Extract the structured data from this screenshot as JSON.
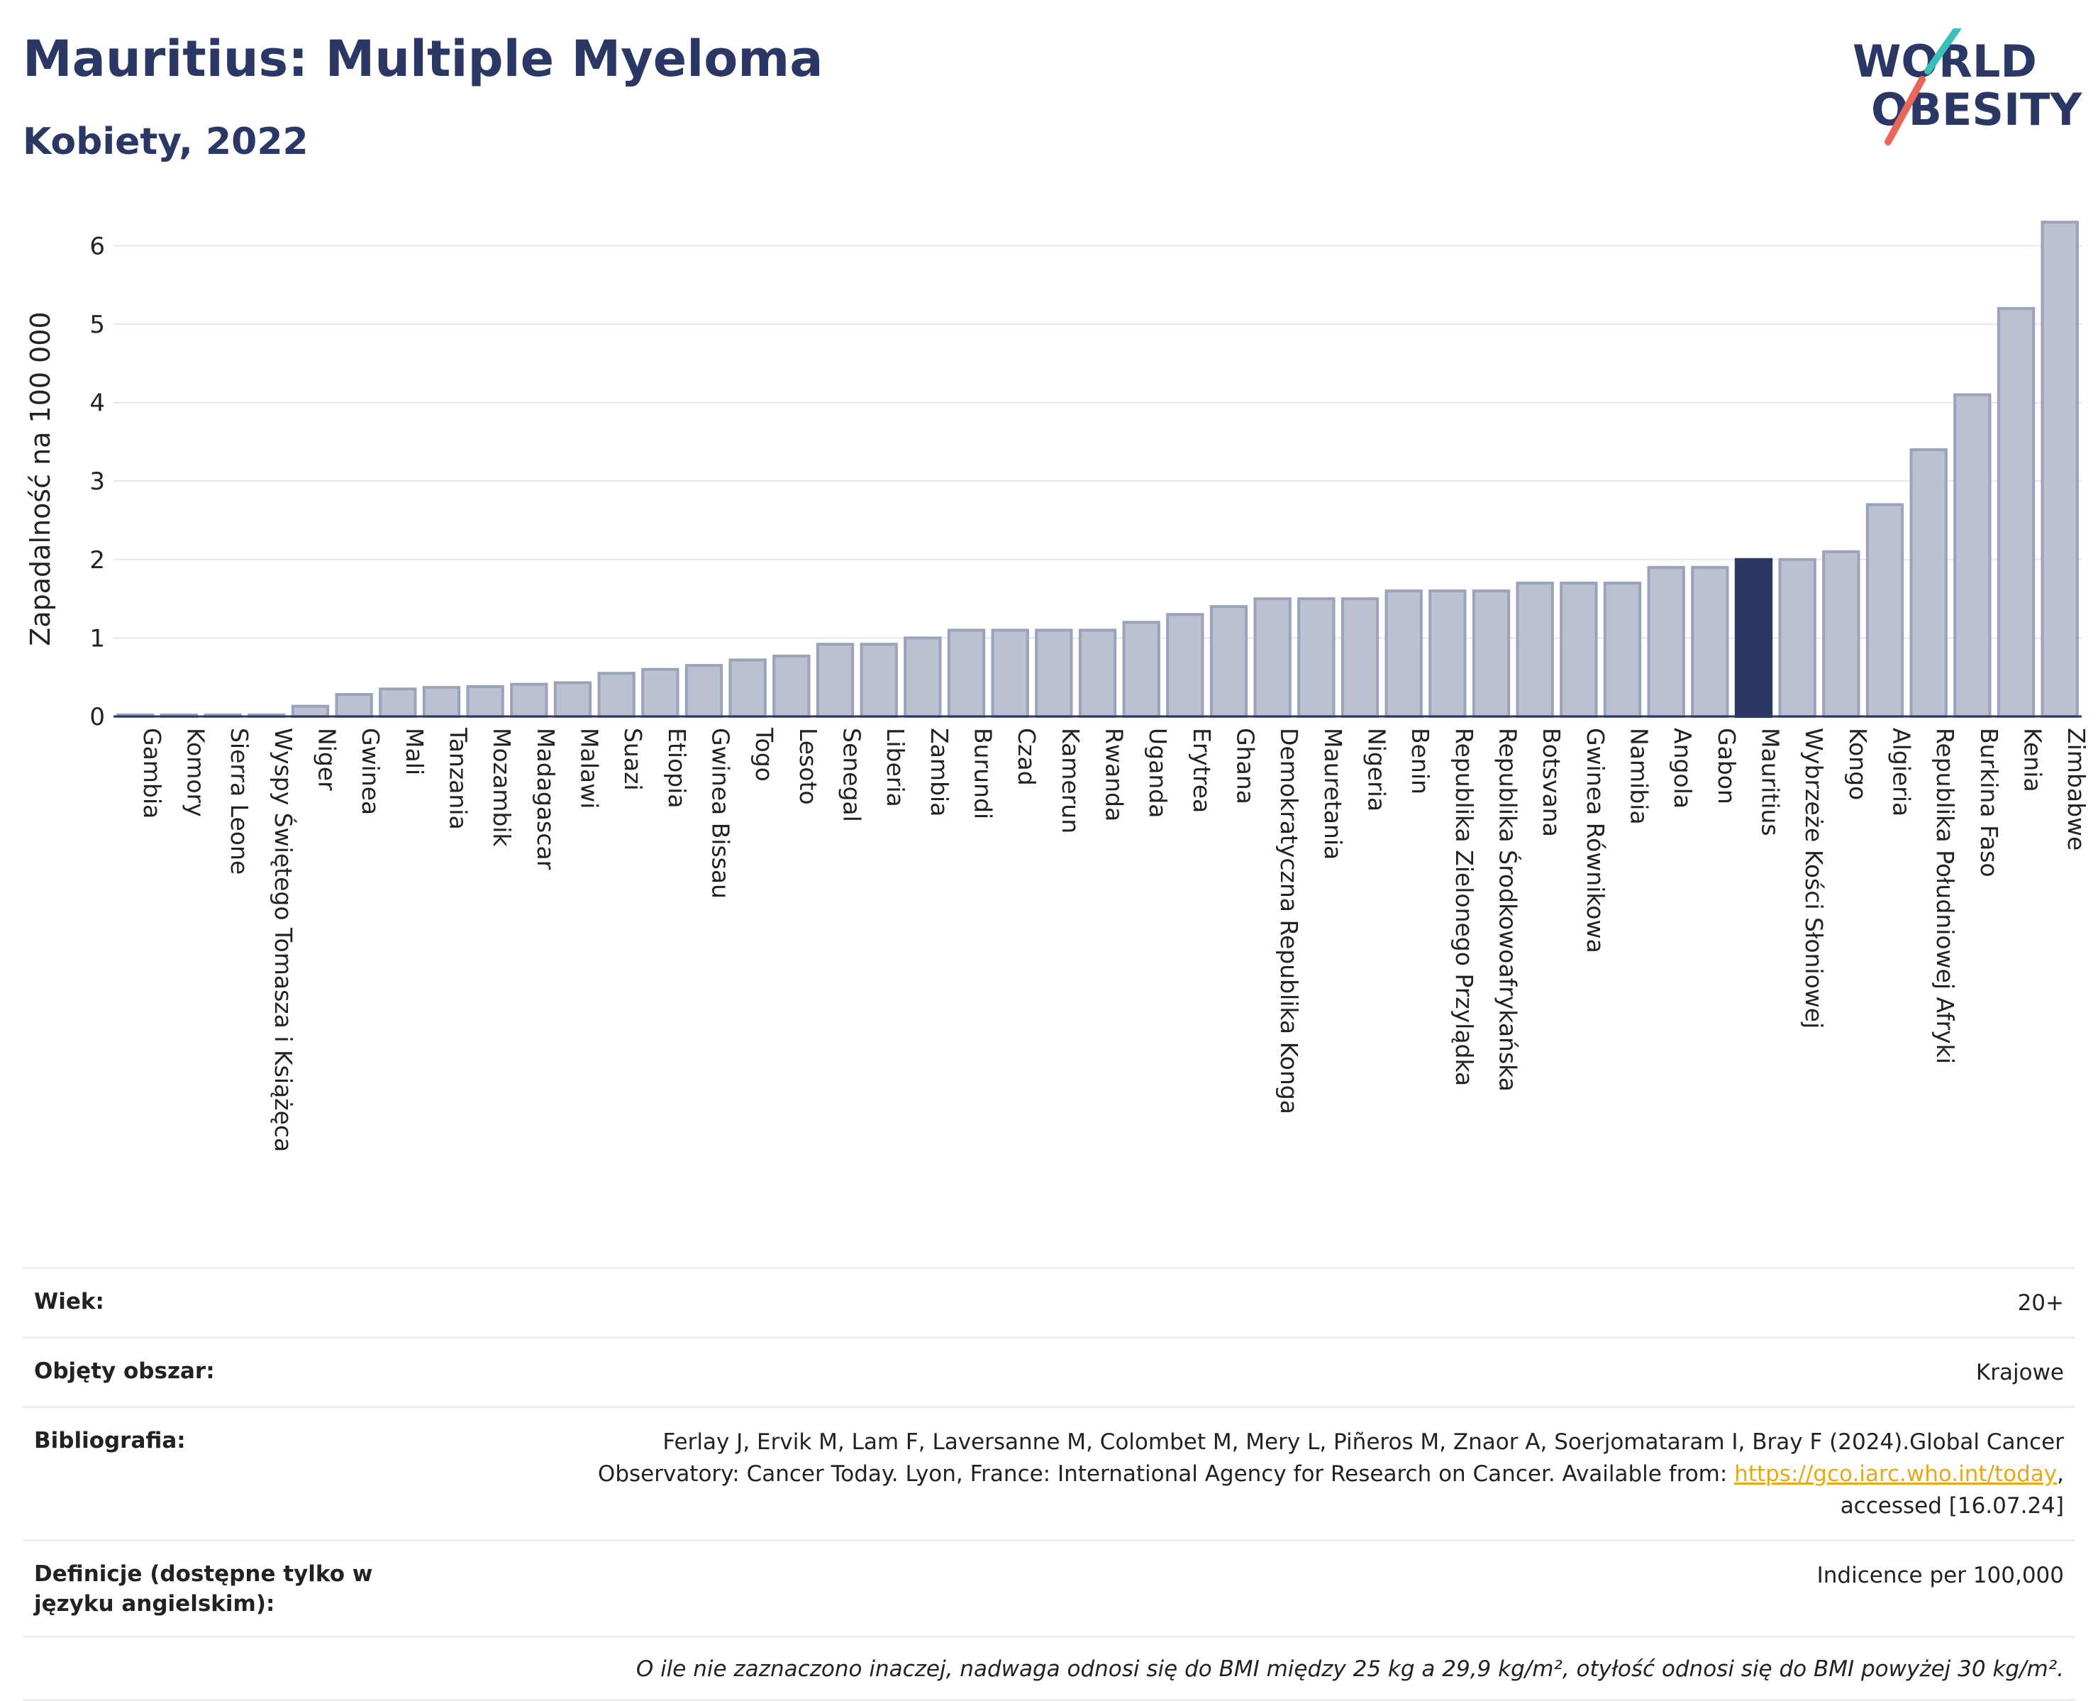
{
  "header": {
    "title": "Mauritius: Multiple Myeloma",
    "subtitle": "Kobiety, 2022"
  },
  "logo": {
    "line1": "WORLD",
    "line2": "OBESITY"
  },
  "colors": {
    "bar": "#bcc1d2",
    "bar_stroke": "#9aa2bc",
    "highlight": "#2b3866",
    "title": "#2b3866"
  },
  "chart_data": {
    "type": "bar",
    "ylabel": "Zapadalność na 100 000",
    "ylim": [
      0,
      6.6
    ],
    "yticks": [
      0,
      1,
      2,
      3,
      4,
      5,
      6
    ],
    "grid": true,
    "highlight": "Mauritius",
    "categories": [
      "Gambia",
      "Komory",
      "Sierra Leone",
      "Wyspy Świętego Tomasza i Książęca",
      "Niger",
      "Gwinea",
      "Mali",
      "Tanzania",
      "Mozambik",
      "Madagascar",
      "Malawi",
      "Suazi",
      "Etiopia",
      "Gwinea Bissau",
      "Togo",
      "Lesoto",
      "Senegal",
      "Liberia",
      "Zambia",
      "Burundi",
      "Czad",
      "Kamerun",
      "Rwanda",
      "Uganda",
      "Erytrea",
      "Ghana",
      "Demokratyczna Republika Konga",
      "Mauretania",
      "Nigeria",
      "Benin",
      "Republika Zielonego Przylądka",
      "Republika Środkowoafrykańska",
      "Botsvana",
      "Gwinea Równikowa",
      "Namibia",
      "Angola",
      "Gabon",
      "Mauritius",
      "Wybrzeże Kości Słoniowej",
      "Kongo",
      "Algieria",
      "Republika Południowej Afryki",
      "Burkina Faso",
      "Kenia",
      "Zimbabwe"
    ],
    "values": [
      0.02,
      0.02,
      0.02,
      0.02,
      0.13,
      0.28,
      0.35,
      0.37,
      0.38,
      0.41,
      0.43,
      0.55,
      0.6,
      0.65,
      0.72,
      0.77,
      0.92,
      0.92,
      1.0,
      1.1,
      1.1,
      1.1,
      1.1,
      1.2,
      1.3,
      1.4,
      1.5,
      1.5,
      1.5,
      1.6,
      1.6,
      1.6,
      1.7,
      1.7,
      1.7,
      1.9,
      1.9,
      2.0,
      2.0,
      2.1,
      2.7,
      3.4,
      4.1,
      5.2,
      6.3
    ]
  },
  "meta": {
    "age_label": "Wiek:",
    "age_value": "20+",
    "area_label": "Objęty obszar:",
    "area_value": "Krajowe",
    "biblio_label": "Bibliografia:",
    "biblio_line1": "Ferlay J, Ervik M, Lam F, Laversanne M, Colombet M, Mery L, Piñeros M, Znaor A, Soerjomataram I, Bray F (2024).Global Cancer",
    "biblio_line2": "Observatory: Cancer Today. Lyon, France: International Agency for Research on Cancer. Available from: ",
    "biblio_link": "https://gco.iarc.who.int/today",
    "biblio_line2_end": ",",
    "biblio_line3": "accessed [16.07.24]",
    "def_label": "Definicje (dostępne tylko w języku angielskim):",
    "def_value": "Indicence per 100,000",
    "note": "O ile nie zaznaczono inaczej, nadwaga odnosi się do BMI między 25 kg a 29,9 kg/m², otyłość odnosi się do BMI powyżej 30 kg/m²."
  }
}
